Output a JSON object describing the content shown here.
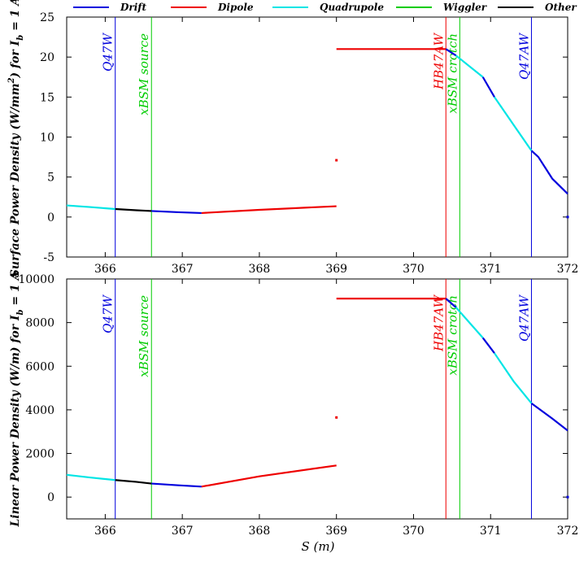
{
  "legend": [
    {
      "name": "Drift",
      "color": "#0000dd"
    },
    {
      "name": "Dipole",
      "color": "#ee0000"
    },
    {
      "name": "Quadrupole",
      "color": "#00e5e5"
    },
    {
      "name": "Wiggler",
      "color": "#00cc00"
    },
    {
      "name": "Other",
      "color": "#000000"
    }
  ],
  "xlabel": "S (m)",
  "chart_data": [
    {
      "type": "line",
      "title": "",
      "ylabel": "Surface Power Density (W/mm²) for I_b = 1 A",
      "ylabel_parts": [
        "Surface Power Density (W/mm",
        "2",
        ") for I",
        "b",
        " = 1 A"
      ],
      "xlim": [
        365.5,
        372
      ],
      "ylim": [
        -5,
        25
      ],
      "xticks": [
        366,
        367,
        368,
        369,
        370,
        371,
        372
      ],
      "yticks": [
        -5,
        0,
        5,
        10,
        15,
        20,
        25
      ],
      "markers": [
        {
          "label": "Q47W",
          "x": 366.13,
          "color": "#0000dd"
        },
        {
          "label": "xBSM source",
          "x": 366.6,
          "color": "#00cc00"
        },
        {
          "label": "HB47AW",
          "x": 370.42,
          "color": "#ee0000"
        },
        {
          "label": "xBSM crotch",
          "x": 370.6,
          "color": "#00cc00"
        },
        {
          "label": "Q47AW",
          "x": 371.53,
          "color": "#0000dd"
        }
      ],
      "segments": [
        {
          "series": "Quadrupole",
          "x": [
            365.5,
            365.8,
            366.13
          ],
          "y": [
            1.45,
            1.25,
            1.0
          ]
        },
        {
          "series": "Other",
          "x": [
            366.13,
            366.4,
            366.6
          ],
          "y": [
            1.0,
            0.85,
            0.75
          ]
        },
        {
          "series": "Drift",
          "x": [
            366.6,
            366.95,
            367.25
          ],
          "y": [
            0.75,
            0.6,
            0.5
          ]
        },
        {
          "series": "Dipole",
          "x": [
            367.25,
            368.0,
            369.0
          ],
          "y": [
            0.5,
            0.9,
            1.35
          ]
        },
        {
          "series": "Dipole",
          "x": [
            369.0
          ],
          "y": [
            7.1
          ]
        },
        {
          "series": "Dipole",
          "x": [
            369.0,
            370.42
          ],
          "y": [
            21.0,
            21.0
          ]
        },
        {
          "series": "Drift",
          "x": [
            370.42,
            370.55
          ],
          "y": [
            21.0,
            20.2
          ]
        },
        {
          "series": "Quadrupole",
          "x": [
            370.55,
            370.9
          ],
          "y": [
            20.2,
            17.5
          ]
        },
        {
          "series": "Drift",
          "x": [
            370.9,
            371.05
          ],
          "y": [
            17.5,
            15.0
          ]
        },
        {
          "series": "Quadrupole",
          "x": [
            371.05,
            371.3,
            371.53
          ],
          "y": [
            15.0,
            11.5,
            8.3
          ]
        },
        {
          "series": "Drift",
          "x": [
            371.53,
            371.62,
            371.8,
            372.0
          ],
          "y": [
            8.3,
            7.5,
            4.8,
            2.9
          ]
        },
        {
          "series": "Drift",
          "x": [
            372.0
          ],
          "y": [
            0.0
          ]
        }
      ]
    },
    {
      "type": "line",
      "title": "",
      "ylabel": "Linear Power Density (W/m) for I_b = 1 A",
      "ylabel_parts": [
        "Linear Power Density (W/m) for I",
        "b",
        " = 1 A"
      ],
      "xlim": [
        365.5,
        372
      ],
      "ylim": [
        -1000,
        10000
      ],
      "xticks": [
        366,
        367,
        368,
        369,
        370,
        371,
        372
      ],
      "yticks": [
        0,
        2000,
        4000,
        6000,
        8000,
        10000
      ],
      "markers": [
        {
          "label": "Q47W",
          "x": 366.13,
          "color": "#0000dd"
        },
        {
          "label": "xBSM source",
          "x": 366.6,
          "color": "#00cc00"
        },
        {
          "label": "HB47AW",
          "x": 370.42,
          "color": "#ee0000"
        },
        {
          "label": "xBSM crotch",
          "x": 370.6,
          "color": "#00cc00"
        },
        {
          "label": "Q47AW",
          "x": 371.53,
          "color": "#0000dd"
        }
      ],
      "segments": [
        {
          "series": "Quadrupole",
          "x": [
            365.5,
            365.8,
            366.13
          ],
          "y": [
            1020,
            900,
            780
          ]
        },
        {
          "series": "Other",
          "x": [
            366.13,
            366.4,
            366.6
          ],
          "y": [
            780,
            700,
            620
          ]
        },
        {
          "series": "Drift",
          "x": [
            366.6,
            366.95,
            367.25
          ],
          "y": [
            620,
            540,
            480
          ]
        },
        {
          "series": "Dipole",
          "x": [
            367.25,
            368.0,
            369.0
          ],
          "y": [
            480,
            950,
            1450
          ]
        },
        {
          "series": "Dipole",
          "x": [
            369.0
          ],
          "y": [
            3650
          ]
        },
        {
          "series": "Dipole",
          "x": [
            369.0,
            370.42
          ],
          "y": [
            9100,
            9100
          ]
        },
        {
          "series": "Drift",
          "x": [
            370.42,
            370.55
          ],
          "y": [
            9100,
            8700
          ]
        },
        {
          "series": "Quadrupole",
          "x": [
            370.55,
            370.9
          ],
          "y": [
            8700,
            7300
          ]
        },
        {
          "series": "Drift",
          "x": [
            370.9,
            371.05
          ],
          "y": [
            7300,
            6600
          ]
        },
        {
          "series": "Quadrupole",
          "x": [
            371.05,
            371.3,
            371.53
          ],
          "y": [
            6600,
            5300,
            4300
          ]
        },
        {
          "series": "Drift",
          "x": [
            371.53,
            371.8,
            372.0
          ],
          "y": [
            4300,
            3600,
            3050
          ]
        },
        {
          "series": "Drift",
          "x": [
            372.0
          ],
          "y": [
            0
          ]
        }
      ]
    }
  ]
}
